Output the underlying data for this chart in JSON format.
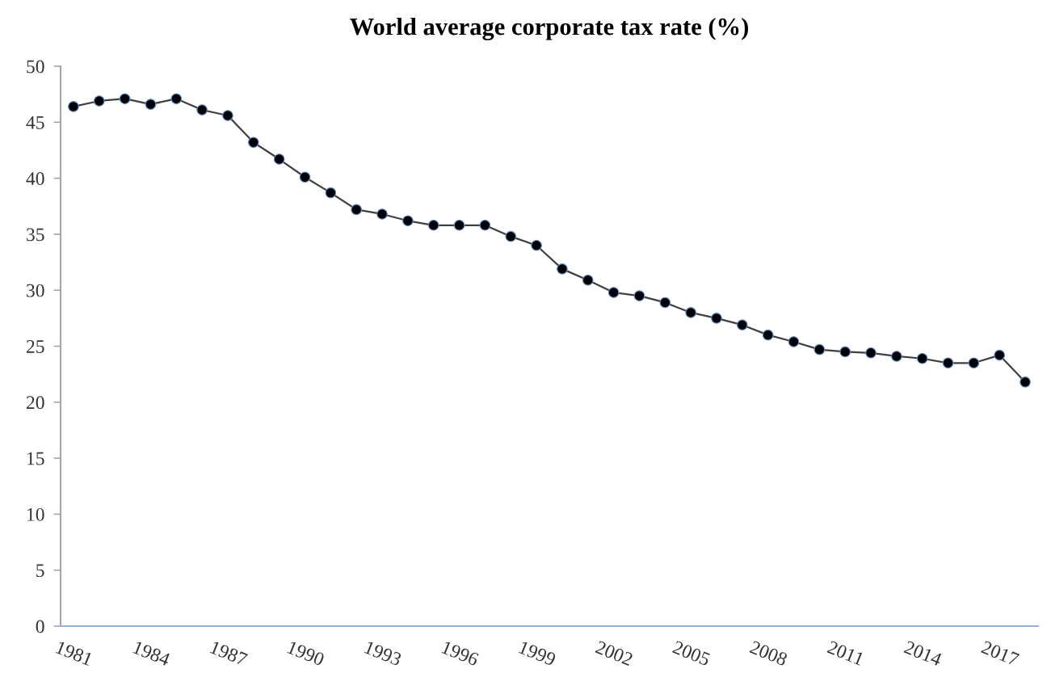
{
  "chart_data": {
    "type": "line",
    "title": "World average corporate tax rate (%)",
    "categories": [
      "1981",
      null,
      null,
      "1984",
      null,
      null,
      "1987",
      null,
      null,
      "1990",
      null,
      null,
      "1993",
      null,
      null,
      "1996",
      null,
      null,
      "1999",
      null,
      null,
      "2002",
      null,
      null,
      "2005",
      null,
      null,
      "2008",
      null,
      null,
      "2011",
      null,
      null,
      "2014",
      null,
      null,
      "2017",
      null
    ],
    "series": [
      {
        "color": "#000000",
        "values": [
          46.4,
          46.9,
          47.1,
          46.6,
          47.1,
          46.1,
          45.6,
          43.2,
          41.7,
          40.1,
          38.7,
          37.2,
          36.8,
          36.2,
          35.8,
          35.8,
          35.8,
          34.8,
          34.0,
          31.9,
          30.9,
          29.8,
          29.5,
          28.9,
          28.0,
          27.5,
          26.9,
          26.0,
          25.4,
          24.7,
          24.5,
          24.4,
          24.1,
          23.9,
          23.5,
          23.5,
          24.2,
          21.8
        ]
      }
    ],
    "ylim": [
      0,
      50
    ],
    "yticks": [
      0,
      5,
      10,
      15,
      20,
      25,
      30,
      35,
      40,
      45,
      50
    ],
    "grid": false,
    "marker": "circle",
    "line_style": "solid"
  }
}
